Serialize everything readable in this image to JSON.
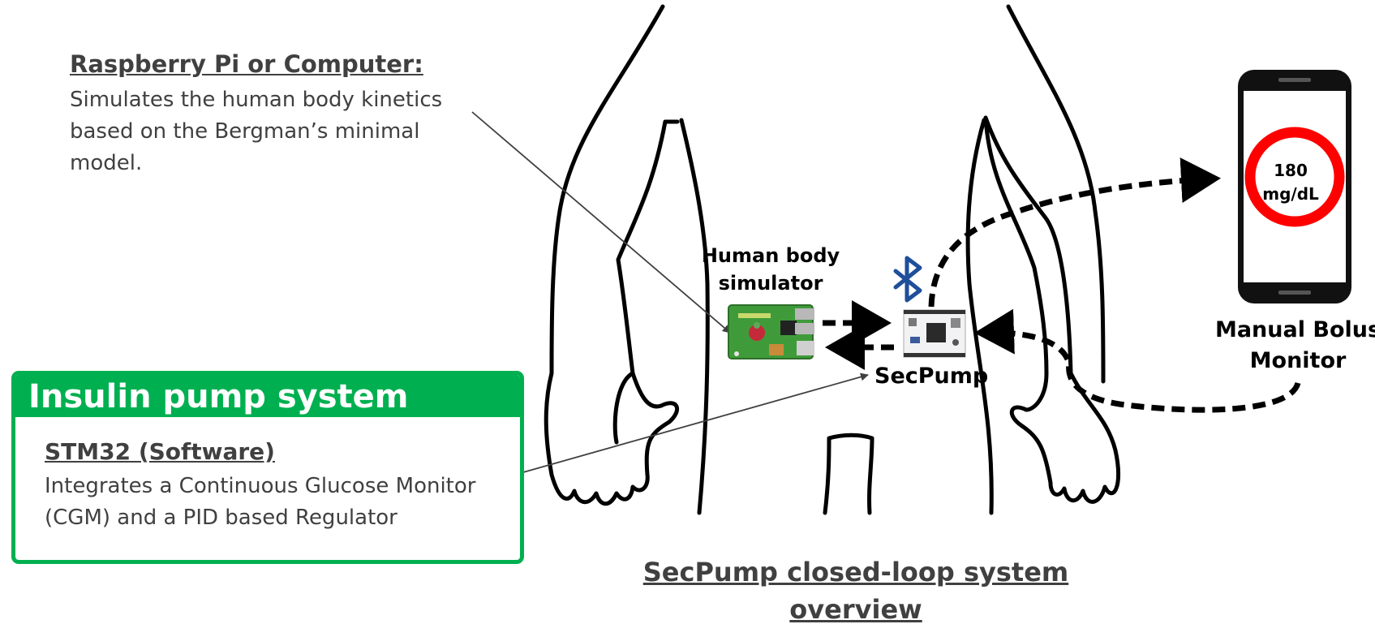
{
  "raspberry_note": {
    "title": "Raspberry Pi or Computer:",
    "description": "Simulates the human body kinetics based on the Bergman’s minimal model."
  },
  "pump_system": {
    "title": "Insulin pump system",
    "subtitle": "STM32 (Software)",
    "description": "Integrates a Continuous Glucose Monitor (CGM) and a PID based Regulator"
  },
  "labels": {
    "human_body_simulator": "Human body simulator",
    "secpump": "SecPump",
    "manual_bolus_monitor": "Manual Bolus Monitor"
  },
  "phone": {
    "glucose_value": "180 mg/dL"
  },
  "caption": "SecPump closed-loop system overview",
  "colors": {
    "accent_green": "#00b050",
    "alert_red": "#ff0000",
    "bluetooth_blue": "#1f4e9a",
    "text_gray": "#404040"
  },
  "icons": [
    "raspberry-pi-board-icon",
    "stm32-board-icon",
    "bluetooth-icon",
    "smartphone-icon"
  ]
}
